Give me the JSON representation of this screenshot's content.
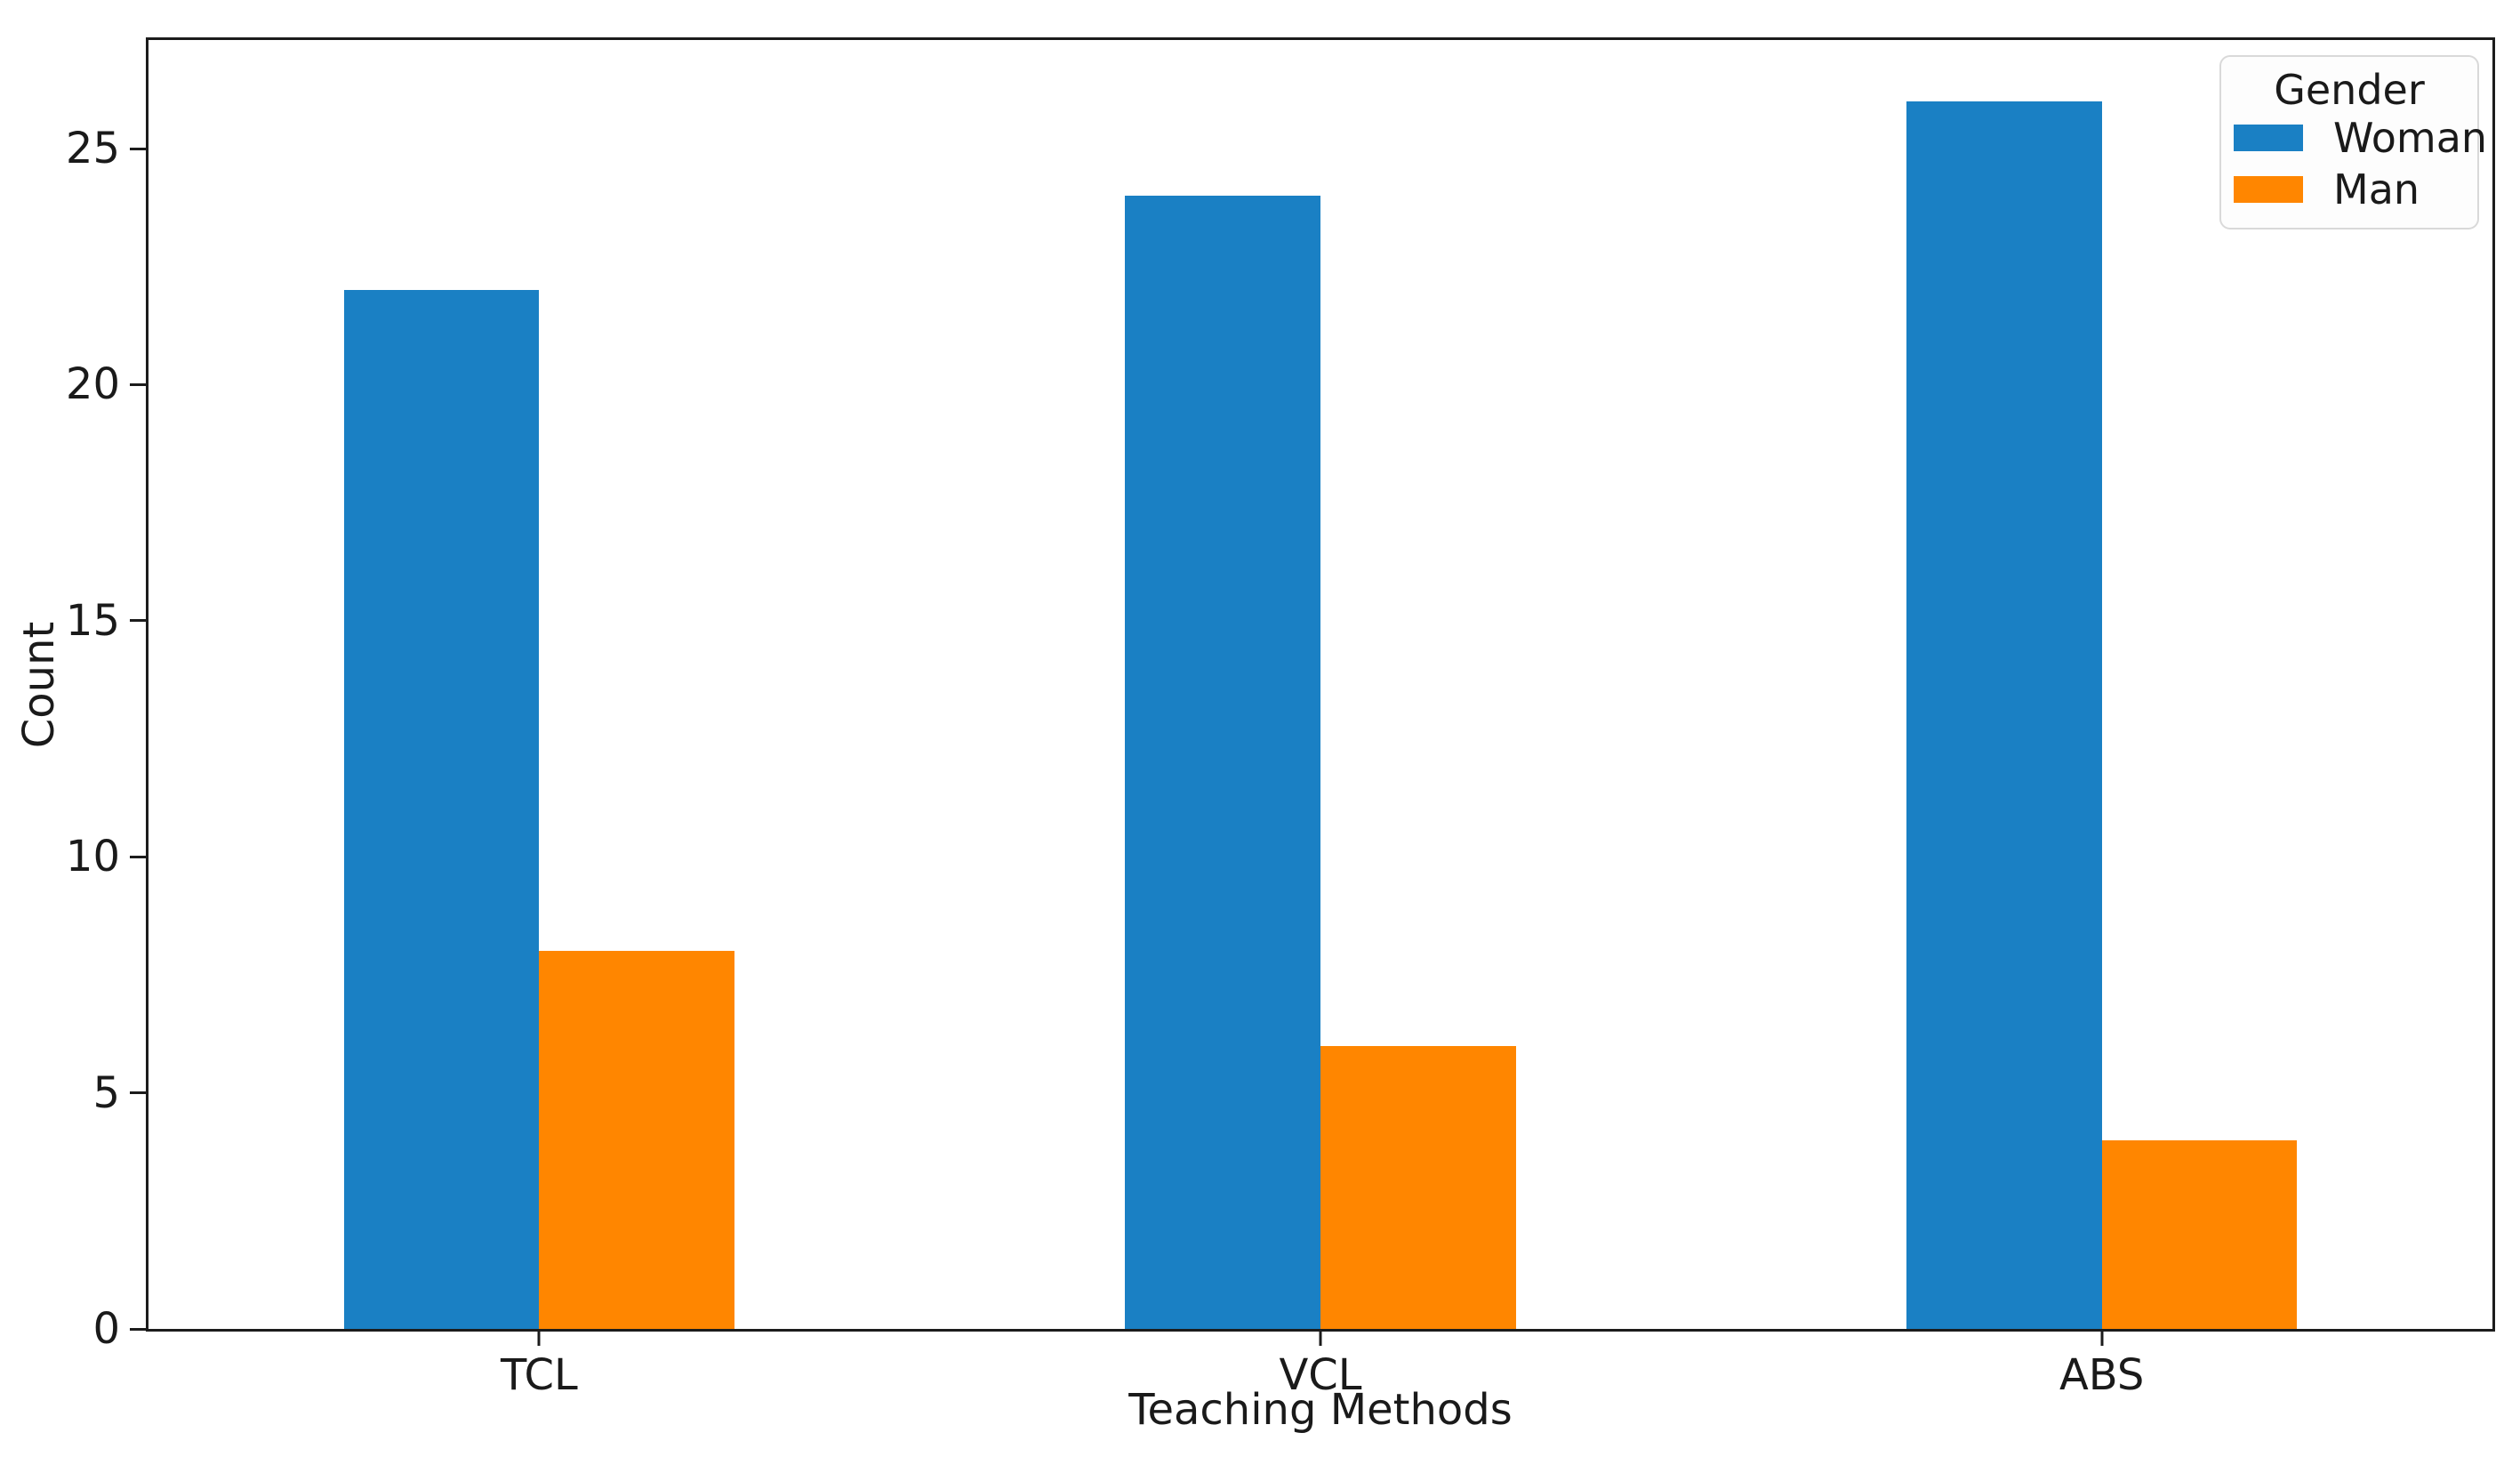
{
  "chart_data": {
    "type": "bar",
    "title": "",
    "xlabel": "Teaching Methods",
    "ylabel": "Count",
    "categories": [
      "TCL",
      "VCL",
      "ABS"
    ],
    "series": [
      {
        "name": "Woman",
        "color": "#1a80c4",
        "values": [
          22,
          24,
          26
        ]
      },
      {
        "name": "Man",
        "color": "#ff8600",
        "values": [
          8,
          6,
          4
        ]
      }
    ],
    "yticks": [
      0,
      5,
      10,
      15,
      20,
      25
    ],
    "ylim": [
      0,
      27.3
    ],
    "grid": false,
    "legend": {
      "title": "Gender",
      "position": "upper-right",
      "entries": [
        "Woman",
        "Man"
      ]
    }
  }
}
